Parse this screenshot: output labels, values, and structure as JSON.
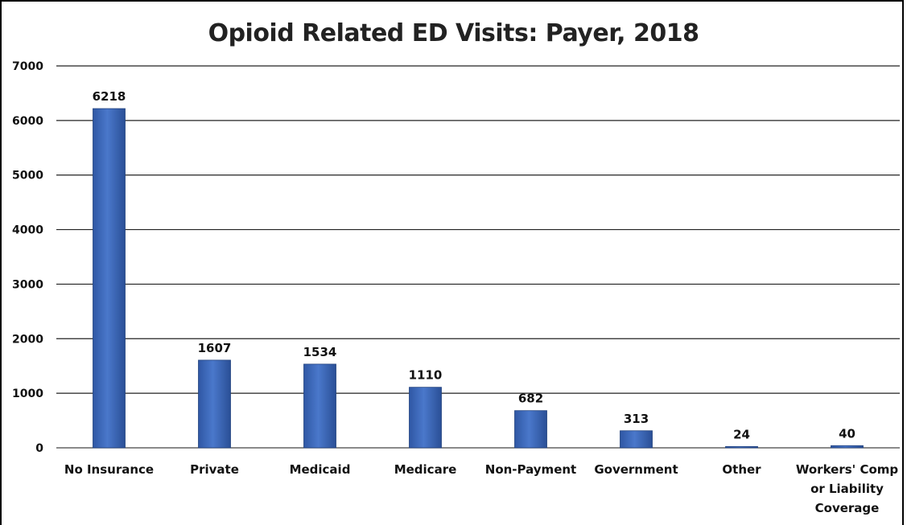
{
  "chart_data": {
    "type": "bar",
    "title": "Opioid Related ED Visits: Payer, 2018",
    "xlabel": "",
    "ylabel": "",
    "ylim": [
      0,
      7000
    ],
    "yticks": [
      0,
      1000,
      2000,
      3000,
      4000,
      5000,
      6000,
      7000
    ],
    "grid": true,
    "legend": "none",
    "bar_color": "#4472c4",
    "categories": [
      [
        "No Insurance"
      ],
      [
        "Private"
      ],
      [
        "Medicaid"
      ],
      [
        "Medicare"
      ],
      [
        "Non-Payment"
      ],
      [
        "Government"
      ],
      [
        "Other"
      ],
      [
        "Workers' Comp",
        "or Liability",
        "Coverage"
      ]
    ],
    "values": [
      6218,
      1607,
      1534,
      1110,
      682,
      313,
      24,
      40
    ]
  }
}
